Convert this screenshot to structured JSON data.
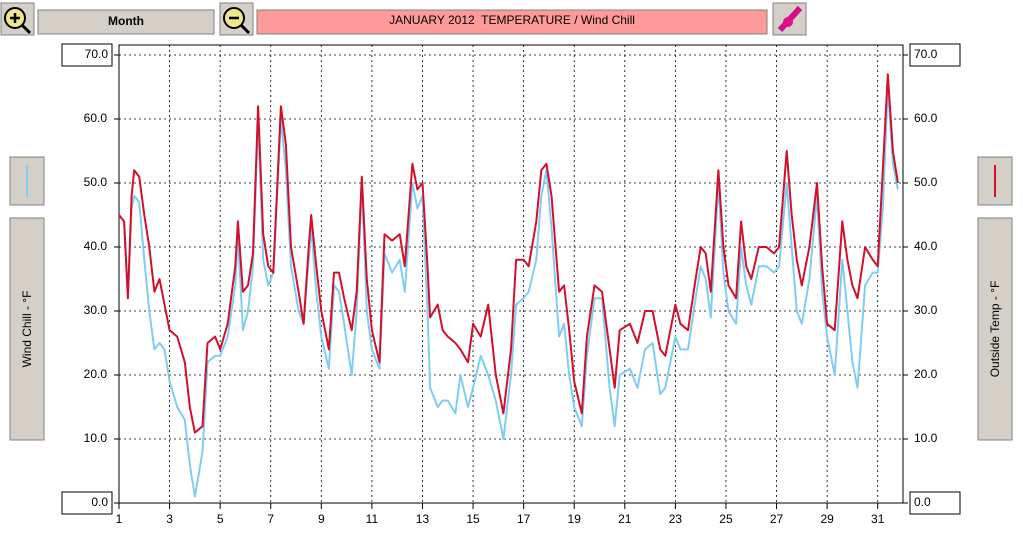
{
  "controls": {
    "period": "Month"
  },
  "chart_data": {
    "type": "line",
    "title": "JANUARY 2012  TEMPERATURE / Wind Chill",
    "y_label": "Wind Chill - °F",
    "y2_label": "Outside Temp - °F",
    "xlim": [
      1,
      32
    ],
    "xticks": [
      1,
      3,
      5,
      7,
      9,
      11,
      13,
      15,
      17,
      19,
      21,
      23,
      25,
      27,
      29,
      31
    ],
    "ylim": [
      0,
      70
    ],
    "yticks": [
      {
        "value": 0,
        "label": "0.0"
      },
      {
        "value": 10,
        "label": "10.0"
      },
      {
        "value": 20,
        "label": "20.0"
      },
      {
        "value": 30,
        "label": "30.0"
      },
      {
        "value": 40,
        "label": "40.0"
      },
      {
        "value": 50,
        "label": "50.0"
      },
      {
        "value": 60,
        "label": "60.0"
      },
      {
        "value": 70,
        "label": "70.0"
      }
    ],
    "y2lim": [
      0,
      70
    ],
    "y2ticks": [
      {
        "value": 0,
        "label": "0.0"
      },
      {
        "value": 10,
        "label": "10.0"
      },
      {
        "value": 20,
        "label": "20.0"
      },
      {
        "value": 30,
        "label": "30.0"
      },
      {
        "value": 40,
        "label": "40.0"
      },
      {
        "value": 50,
        "label": "50.0"
      },
      {
        "value": 60,
        "label": "60.0"
      },
      {
        "value": 70,
        "label": "70.0"
      }
    ],
    "grid": true,
    "x": [
      1,
      1.2,
      1.35,
      1.5,
      1.6,
      1.8,
      2.0,
      2.2,
      2.4,
      2.6,
      2.8,
      3.0,
      3.3,
      3.6,
      3.8,
      4.0,
      4.3,
      4.5,
      4.8,
      5.0,
      5.3,
      5.6,
      5.7,
      5.9,
      6.1,
      6.3,
      6.5,
      6.7,
      6.9,
      7.1,
      7.4,
      7.6,
      7.8,
      8.1,
      8.3,
      8.5,
      8.6,
      8.8,
      9.0,
      9.3,
      9.5,
      9.7,
      9.9,
      10.2,
      10.4,
      10.6,
      10.8,
      11.0,
      11.3,
      11.5,
      11.8,
      12.1,
      12.3,
      12.6,
      12.8,
      13.0,
      13.2,
      13.3,
      13.6,
      13.8,
      14.0,
      14.3,
      14.5,
      14.8,
      15.0,
      15.3,
      15.6,
      15.9,
      16.2,
      16.5,
      16.7,
      17.0,
      17.2,
      17.5,
      17.7,
      17.9,
      18.1,
      18.4,
      18.6,
      18.8,
      19.0,
      19.3,
      19.5,
      19.8,
      20.1,
      20.4,
      20.6,
      20.8,
      21.2,
      21.5,
      21.8,
      22.1,
      22.4,
      22.6,
      23.0,
      23.2,
      23.5,
      23.8,
      24.0,
      24.2,
      24.4,
      24.7,
      24.9,
      25.1,
      25.4,
      25.6,
      25.8,
      26.0,
      26.3,
      26.6,
      26.9,
      27.1,
      27.4,
      27.6,
      27.8,
      28.0,
      28.3,
      28.6,
      28.8,
      29.0,
      29.3,
      29.6,
      29.8,
      30.0,
      30.2,
      30.5,
      30.8,
      31.0,
      31.2,
      31.4,
      31.6,
      31.8
    ],
    "series": [
      {
        "color": "#80cdf2",
        "values": [
          45,
          44,
          32,
          46,
          48,
          47,
          38,
          30,
          24,
          25,
          24,
          19,
          15,
          13,
          6,
          1,
          8,
          22,
          23,
          23,
          26,
          34,
          42,
          27,
          30,
          37,
          60,
          38,
          34,
          36,
          60,
          52,
          37,
          30,
          28,
          38,
          43,
          33,
          26,
          21,
          34,
          33,
          28,
          20,
          30,
          50,
          30,
          24,
          21,
          39,
          36,
          38,
          33,
          50,
          46,
          48,
          30,
          18,
          15,
          16,
          16,
          14,
          20,
          15,
          18,
          23,
          20,
          16,
          10,
          20,
          31,
          32,
          33,
          38,
          48,
          52,
          43,
          26,
          28,
          20,
          15,
          12,
          23,
          32,
          32,
          18,
          12,
          20,
          21,
          18,
          24,
          25,
          17,
          18,
          26,
          24,
          24,
          32,
          37,
          35,
          29,
          50,
          36,
          30,
          28,
          40,
          34,
          31,
          37,
          37,
          36,
          37,
          50,
          40,
          30,
          28,
          35,
          48,
          33,
          26,
          20,
          38,
          30,
          22,
          18,
          34,
          36,
          36,
          46,
          65,
          53,
          49
        ]
      },
      {
        "color": "#d2102c",
        "axis": "y2",
        "values": [
          45,
          44,
          32,
          48,
          52,
          51,
          45,
          40,
          33,
          35,
          31,
          27,
          26,
          22,
          15,
          11,
          12,
          25,
          26,
          24,
          28,
          37,
          44,
          33,
          34,
          39,
          62,
          42,
          37,
          36,
          62,
          56,
          40,
          33,
          28,
          40,
          45,
          37,
          30,
          24,
          36,
          36,
          32,
          27,
          33,
          51,
          35,
          27,
          22,
          42,
          41,
          42,
          37,
          53,
          49,
          50,
          37,
          29,
          31,
          27,
          26,
          25,
          24,
          22,
          28,
          26,
          31,
          20,
          14,
          24,
          38,
          38,
          37,
          44,
          52,
          53,
          48,
          33,
          34,
          27,
          19,
          14,
          26,
          34,
          33,
          24,
          18,
          27,
          28,
          25,
          30,
          30,
          24,
          23,
          31,
          28,
          27,
          35,
          40,
          39,
          33,
          52,
          40,
          34,
          32,
          44,
          37,
          35,
          40,
          40,
          39,
          40,
          55,
          45,
          38,
          34,
          40,
          50,
          37,
          28,
          27,
          44,
          38,
          34,
          32,
          40,
          38,
          37,
          52,
          67,
          55,
          50
        ]
      }
    ]
  }
}
